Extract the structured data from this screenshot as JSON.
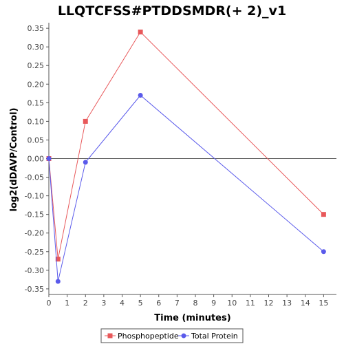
{
  "colors": {
    "phosphopeptide": "#e8585a",
    "total_protein": "#5a5aeb",
    "axis": "#555555",
    "zero_line": "#555555"
  },
  "chart_data": {
    "type": "line",
    "title": "LLQTCFSS#PTDDSMDR(+ 2)_v1",
    "xlabel": "Time (minutes)",
    "ylabel": "log2(dDAVP/Control)",
    "xlim": [
      0,
      15.7
    ],
    "ylim": [
      -0.365,
      0.365
    ],
    "x_ticks": [
      0,
      1,
      2,
      3,
      4,
      5,
      6,
      7,
      8,
      9,
      10,
      11,
      12,
      13,
      14,
      15
    ],
    "y_ticks": [
      -0.35,
      -0.3,
      -0.25,
      -0.2,
      -0.15,
      -0.1,
      -0.05,
      0.0,
      0.05,
      0.1,
      0.15,
      0.2,
      0.25,
      0.3,
      0.35
    ],
    "y_tick_labels": [
      "-0.35",
      "-0.30",
      "-0.25",
      "-0.20",
      "-0.15",
      "-0.10",
      "-0.05",
      "0.00",
      "0.05",
      "0.10",
      "0.15",
      "0.20",
      "0.25",
      "0.30",
      "0.35"
    ],
    "zero_line": true,
    "grid": false,
    "legend_position": "bottom",
    "series": [
      {
        "name": "Phosphopeptide",
        "marker": "square",
        "color": "#e8585a",
        "x": [
          0,
          0.5,
          2,
          5,
          15
        ],
        "y": [
          0.0,
          -0.27,
          0.1,
          0.34,
          -0.15
        ]
      },
      {
        "name": "Total Protein",
        "marker": "circle",
        "color": "#5a5aeb",
        "x": [
          0,
          0.5,
          2,
          5,
          15
        ],
        "y": [
          0.0,
          -0.33,
          -0.01,
          0.17,
          -0.25
        ]
      }
    ]
  }
}
